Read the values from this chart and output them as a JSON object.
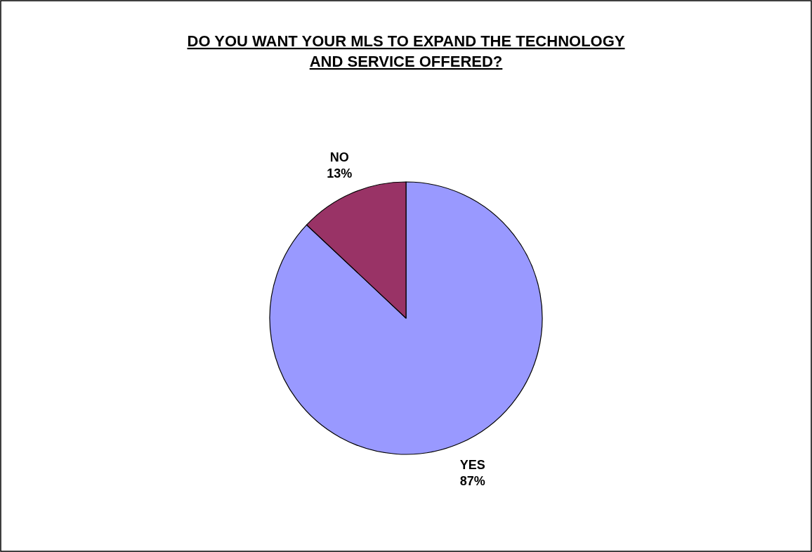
{
  "chart_data": {
    "type": "pie",
    "title": "DO YOU WANT YOUR MLS TO EXPAND THE TECHNOLOGY AND SERVICE OFFERED?",
    "categories": [
      "YES",
      "NO"
    ],
    "values": [
      87,
      13
    ],
    "colors": [
      "#9999ff",
      "#993366"
    ],
    "value_labels": [
      "87%",
      "13%"
    ]
  }
}
